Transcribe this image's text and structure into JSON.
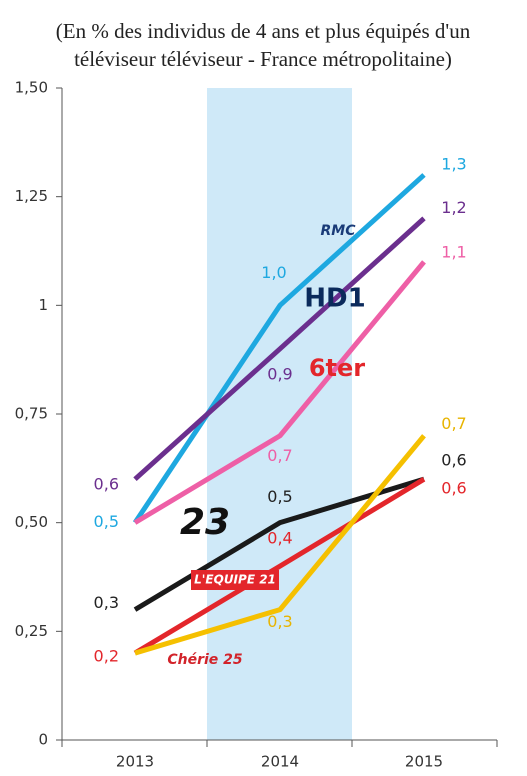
{
  "chart_data": {
    "type": "line",
    "subtitle": "(En % des individus de 4 ans et plus équipés d'un téléviseur téléviseur - France métropolitaine)",
    "categories": [
      "2013",
      "2014",
      "2015"
    ],
    "ylim": [
      0,
      1.5
    ],
    "yticks": [
      0,
      {
        "value": 0.25,
        "label": "0,25"
      },
      {
        "value": 0.5,
        "label": "0,50"
      },
      {
        "value": 0.75,
        "label": "0,75"
      },
      1,
      {
        "value": 1.25,
        "label": "1,25"
      },
      {
        "value": 1.5,
        "label": "1,50"
      }
    ],
    "series": [
      {
        "name": "RMC",
        "color": "#1ea8e0",
        "values": [
          0.5,
          1.0,
          1.3
        ],
        "value_labels": [
          "0,5",
          "1,0",
          "1,3"
        ]
      },
      {
        "name": "HD1",
        "color": "#6b2f8e",
        "values": [
          0.6,
          0.9,
          1.2
        ],
        "value_labels": [
          "0,6",
          "0,9",
          "1,2"
        ]
      },
      {
        "name": "6ter",
        "color": "#ee5fa6",
        "values": [
          0.5,
          0.7,
          1.1
        ],
        "value_labels": [
          null,
          "0,7",
          "1,1"
        ]
      },
      {
        "name": "23",
        "color": "#1a1a1a",
        "values": [
          0.3,
          0.5,
          0.6
        ],
        "value_labels": [
          "0,3",
          "0,5",
          "0,6"
        ]
      },
      {
        "name": "L'EQUIPE 21",
        "color": "#e3262b",
        "values": [
          0.2,
          0.4,
          0.6
        ],
        "value_labels": [
          "0,2",
          "0,4",
          "0,6"
        ]
      },
      {
        "name": "Chérie 25",
        "color": "#f5c000",
        "values": [
          0.2,
          0.3,
          0.7
        ],
        "value_labels": [
          null,
          "0,3",
          "0,7"
        ]
      }
    ]
  }
}
